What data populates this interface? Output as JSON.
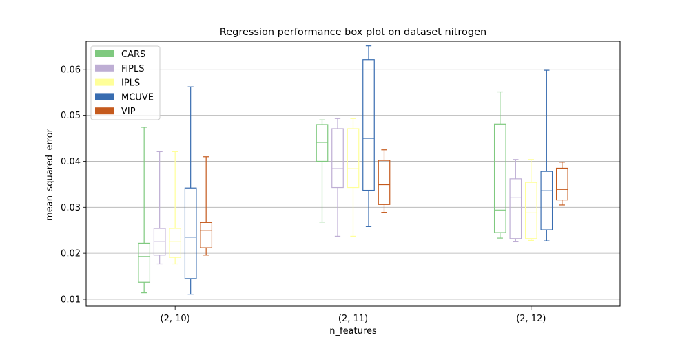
{
  "chart_data": {
    "type": "box",
    "title": "Regression performance box plot on dataset nitrogen",
    "xlabel": "n_features",
    "ylabel": "mean_squared_error",
    "categories": [
      "(2, 10)",
      "(2, 11)",
      "(2, 12)"
    ],
    "ylim": [
      0.0085,
      0.0661
    ],
    "yticks": [
      0.01,
      0.02,
      0.03,
      0.04,
      0.05,
      0.06
    ],
    "ytick_labels": [
      "0.01",
      "0.02",
      "0.03",
      "0.04",
      "0.05",
      "0.06"
    ],
    "grid": "horizontal",
    "legend_position": "top-left",
    "series": [
      {
        "name": "CARS",
        "color": "#7fc97f",
        "boxes": [
          {
            "whislo": 0.0114,
            "q1": 0.0137,
            "med": 0.0193,
            "q3": 0.0222,
            "whishi": 0.0474
          },
          {
            "whislo": 0.0268,
            "q1": 0.04,
            "med": 0.0441,
            "q3": 0.048,
            "whishi": 0.049
          },
          {
            "whislo": 0.0233,
            "q1": 0.0245,
            "med": 0.0294,
            "q3": 0.0481,
            "whishi": 0.0551
          }
        ]
      },
      {
        "name": "FiPLS",
        "color": "#beaed4",
        "boxes": [
          {
            "whislo": 0.0177,
            "q1": 0.0196,
            "med": 0.0226,
            "q3": 0.0254,
            "whishi": 0.0421
          },
          {
            "whislo": 0.0237,
            "q1": 0.0343,
            "med": 0.0384,
            "q3": 0.0471,
            "whishi": 0.0493
          },
          {
            "whislo": 0.0225,
            "q1": 0.0232,
            "med": 0.0322,
            "q3": 0.0362,
            "whishi": 0.0404
          }
        ]
      },
      {
        "name": "IPLS",
        "color": "#ffff99",
        "boxes": [
          {
            "whislo": 0.0177,
            "q1": 0.0191,
            "med": 0.0226,
            "q3": 0.0254,
            "whishi": 0.0421
          },
          {
            "whislo": 0.0237,
            "q1": 0.0343,
            "med": 0.0384,
            "q3": 0.0471,
            "whishi": 0.0493
          },
          {
            "whislo": 0.0228,
            "q1": 0.0232,
            "med": 0.0288,
            "q3": 0.0354,
            "whishi": 0.0404
          }
        ]
      },
      {
        "name": "MCUVE",
        "color": "#386cb0",
        "boxes": [
          {
            "whislo": 0.0111,
            "q1": 0.0145,
            "med": 0.0235,
            "q3": 0.0342,
            "whishi": 0.0562
          },
          {
            "whislo": 0.0258,
            "q1": 0.0337,
            "med": 0.045,
            "q3": 0.0621,
            "whishi": 0.0651
          },
          {
            "whislo": 0.0227,
            "q1": 0.0251,
            "med": 0.0336,
            "q3": 0.0378,
            "whishi": 0.0598
          }
        ]
      },
      {
        "name": "VIP",
        "color": "#c55a1d",
        "boxes": [
          {
            "whislo": 0.0196,
            "q1": 0.0212,
            "med": 0.025,
            "q3": 0.0267,
            "whishi": 0.041
          },
          {
            "whislo": 0.0289,
            "q1": 0.0306,
            "med": 0.0349,
            "q3": 0.0402,
            "whishi": 0.0425
          },
          {
            "whislo": 0.0305,
            "q1": 0.0316,
            "med": 0.0339,
            "q3": 0.0385,
            "whishi": 0.0398
          }
        ]
      }
    ]
  }
}
